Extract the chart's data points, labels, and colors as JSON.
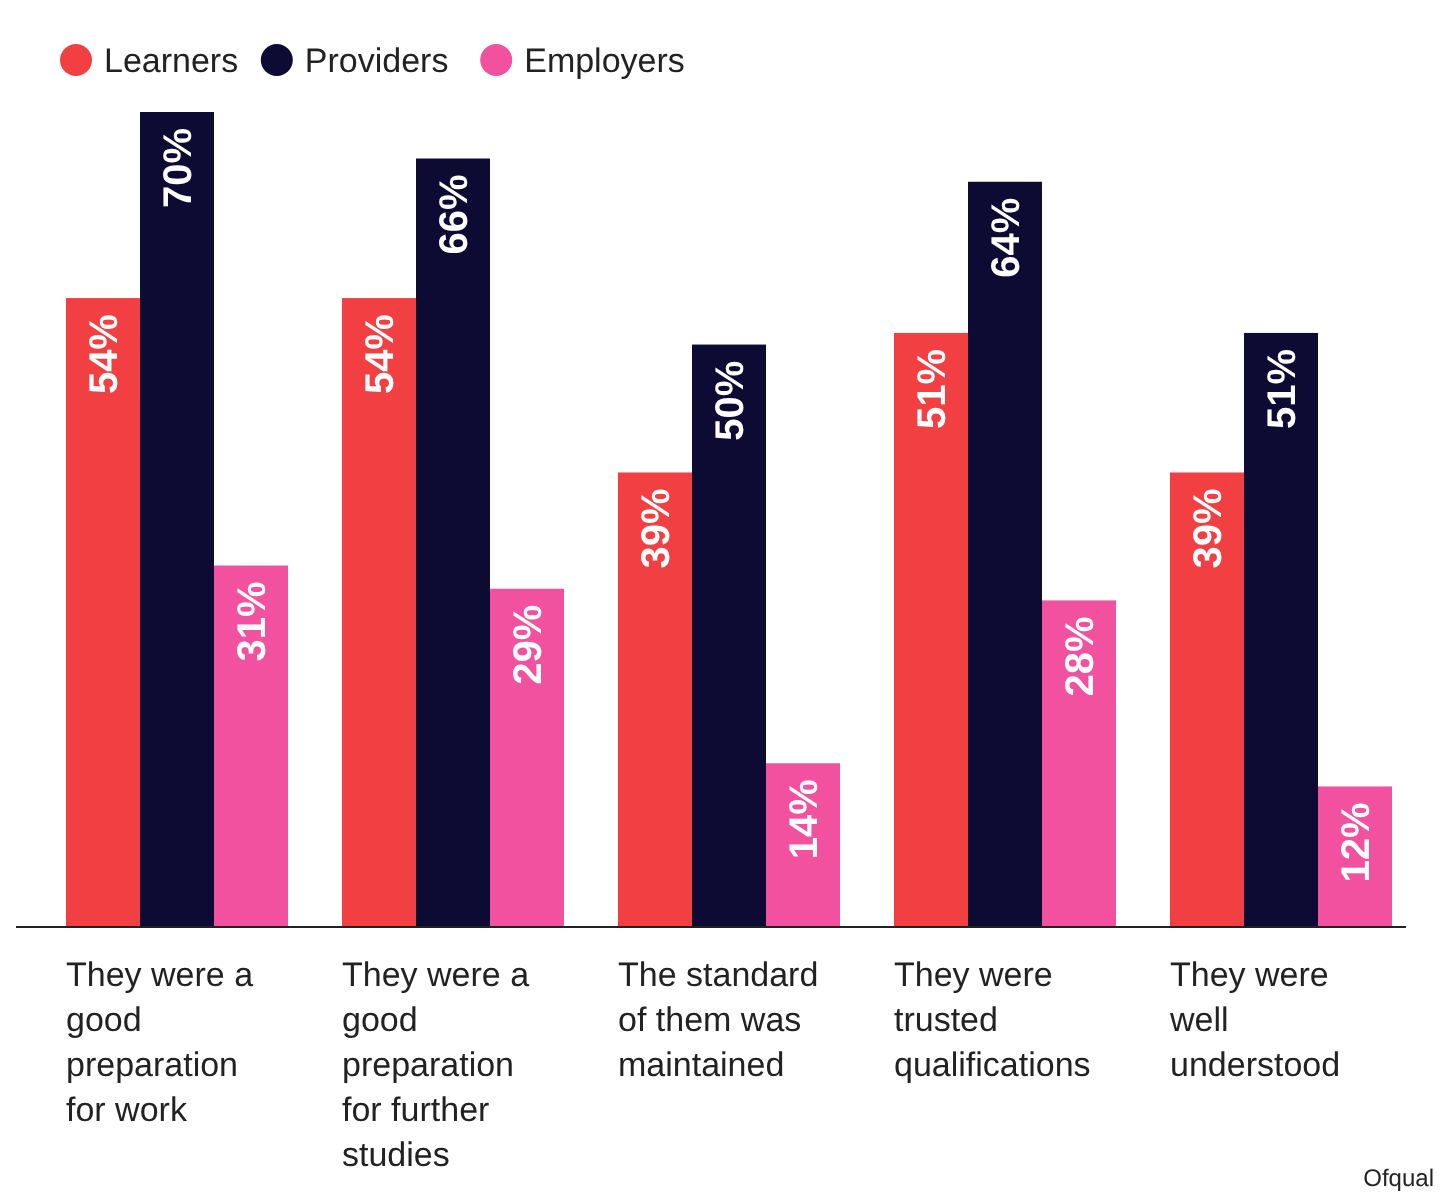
{
  "chart_data": {
    "type": "bar",
    "categories": [
      "They were a good preparation for work",
      "They were a good preparation for further studies",
      "The standard of them was maintained",
      "They were trusted qualifications",
      "They were well understood"
    ],
    "series": [
      {
        "name": "Learners",
        "color": "#f23f42",
        "values": [
          54,
          54,
          39,
          51,
          39
        ],
        "value_labels": [
          "54%",
          "54%",
          "39%",
          "51%",
          "39%"
        ]
      },
      {
        "name": "Providers",
        "color": "#0d0a33",
        "values": [
          70,
          66,
          50,
          64,
          51
        ],
        "value_labels": [
          "70%",
          "66%",
          "50%",
          "64%",
          "51%"
        ]
      },
      {
        "name": "Employers",
        "color": "#f2519f",
        "values": [
          31,
          29,
          14,
          28,
          12
        ],
        "value_labels": [
          "31%",
          "29%",
          "14%",
          "28%",
          "12%"
        ]
      }
    ],
    "legend": "top left",
    "annotations": [
      "Ofqual"
    ]
  }
}
